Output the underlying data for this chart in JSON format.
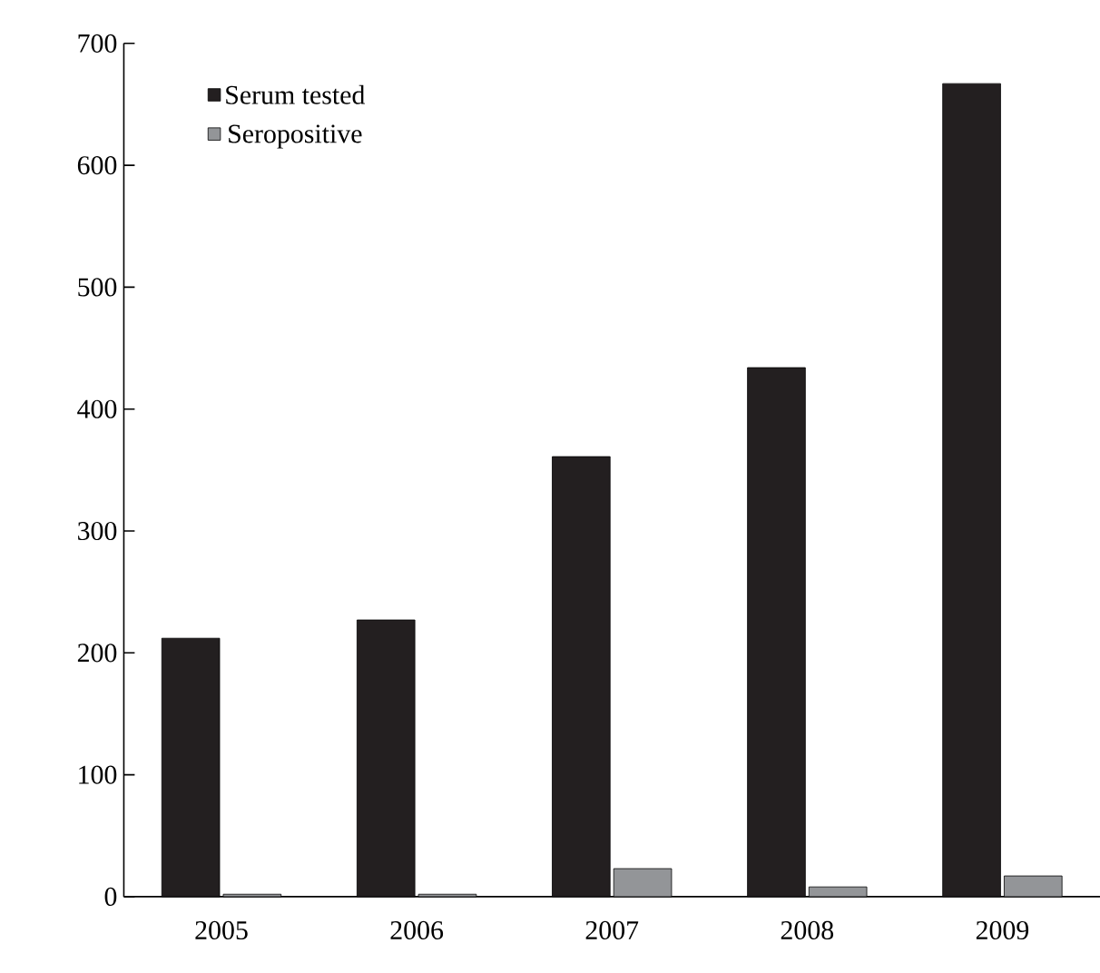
{
  "chart_data": {
    "type": "bar",
    "categories": [
      "2005",
      "2006",
      "2007",
      "2008",
      "2009"
    ],
    "series": [
      {
        "name": "Serum tested",
        "color": "#231f20",
        "values": [
          212,
          227,
          361,
          434,
          667
        ]
      },
      {
        "name": "Seropositive",
        "color": "#939598",
        "values": [
          2,
          2,
          23,
          8,
          17
        ]
      }
    ],
    "ylim": [
      0,
      700
    ],
    "yticks": [
      0,
      100,
      200,
      300,
      400,
      500,
      600,
      700
    ],
    "grid": false,
    "legend": "top left"
  }
}
